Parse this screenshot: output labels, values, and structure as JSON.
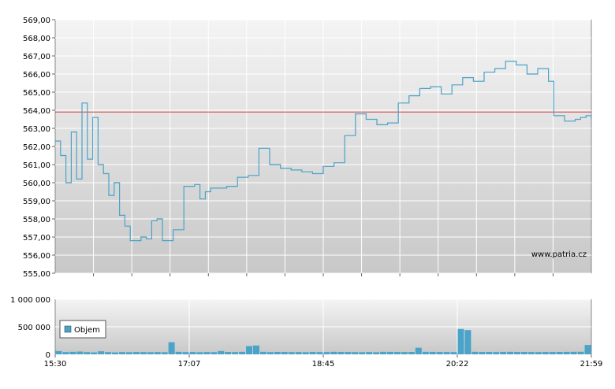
{
  "watermark": "www.patria.cz",
  "chart_data": [
    {
      "type": "line",
      "ylim": [
        555,
        569
      ],
      "y_ticks": [
        "569,00",
        "568,00",
        "567,00",
        "566,00",
        "565,00",
        "564,00",
        "563,00",
        "562,00",
        "561,00",
        "560,00",
        "559,00",
        "558,00",
        "557,00",
        "556,00",
        "555,00"
      ],
      "reference_line": 563.9,
      "series": [
        {
          "color": "#4aa3c8",
          "x": [
            0,
            0.01,
            0.02,
            0.03,
            0.04,
            0.05,
            0.06,
            0.07,
            0.08,
            0.09,
            0.1,
            0.11,
            0.12,
            0.13,
            0.14,
            0.15,
            0.16,
            0.17,
            0.18,
            0.19,
            0.2,
            0.22,
            0.24,
            0.26,
            0.27,
            0.28,
            0.29,
            0.3,
            0.32,
            0.34,
            0.36,
            0.38,
            0.4,
            0.42,
            0.44,
            0.46,
            0.48,
            0.5,
            0.52,
            0.54,
            0.56,
            0.58,
            0.6,
            0.62,
            0.64,
            0.66,
            0.68,
            0.7,
            0.72,
            0.74,
            0.76,
            0.78,
            0.8,
            0.82,
            0.84,
            0.86,
            0.88,
            0.9,
            0.92,
            0.93,
            0.95,
            0.97,
            0.98,
            0.99,
            1.0
          ],
          "y": [
            562.3,
            561.5,
            560.0,
            562.8,
            560.2,
            564.4,
            561.3,
            563.6,
            561.0,
            560.5,
            559.3,
            560.0,
            558.2,
            557.6,
            556.8,
            556.8,
            557.0,
            556.9,
            557.9,
            558.0,
            556.8,
            557.4,
            559.8,
            559.9,
            559.1,
            559.5,
            559.7,
            559.7,
            559.8,
            560.3,
            560.4,
            561.9,
            561.0,
            560.8,
            560.7,
            560.6,
            560.5,
            560.9,
            561.1,
            562.6,
            563.8,
            563.5,
            563.2,
            563.3,
            564.4,
            564.8,
            565.2,
            565.3,
            564.9,
            565.4,
            565.8,
            565.6,
            566.1,
            566.3,
            566.7,
            566.5,
            566.0,
            566.3,
            565.6,
            563.7,
            563.4,
            563.5,
            563.6,
            563.7,
            563.5
          ]
        }
      ]
    },
    {
      "type": "bar",
      "ylim": [
        0,
        1000000
      ],
      "y_ticks": [
        "1 000 000",
        "500 000",
        "0"
      ],
      "x_ticks": [
        "15:30",
        "17:07",
        "18:45",
        "20:22",
        "21:59"
      ],
      "legend": "Objem",
      "color": "#4aa3c8",
      "values": [
        60000,
        40000,
        45000,
        50000,
        40000,
        35000,
        55000,
        40000,
        35000,
        40000,
        38000,
        42000,
        40000,
        39000,
        41000,
        38000,
        220000,
        45000,
        40000,
        42000,
        38000,
        41000,
        39000,
        60000,
        43000,
        40000,
        45000,
        150000,
        160000,
        45000,
        40000,
        43000,
        42000,
        40000,
        41000,
        39000,
        42000,
        40000,
        41000,
        45000,
        43000,
        42000,
        40000,
        39000,
        41000,
        38000,
        45000,
        44000,
        42000,
        41000,
        43000,
        120000,
        45000,
        44000,
        42000,
        41000,
        40000,
        460000,
        440000,
        45000,
        42000,
        43000,
        40000,
        44000,
        45000,
        42000,
        43000,
        41000,
        40000,
        42000,
        41000,
        43000,
        44000,
        45000,
        46000,
        170000
      ]
    }
  ]
}
